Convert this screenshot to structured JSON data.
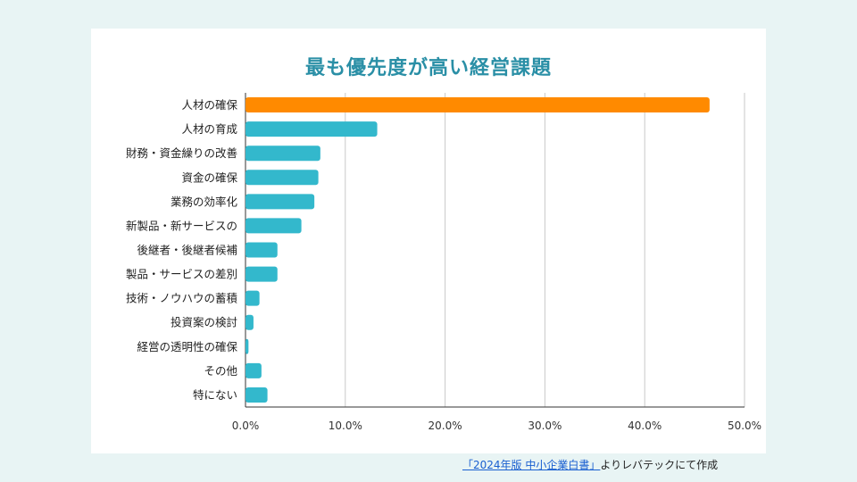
{
  "chart_data": {
    "type": "bar",
    "orientation": "horizontal",
    "title": "最も優先度が高い経営課題",
    "categories": [
      "人材の確保",
      "人材の育成",
      "財務・資金繰りの改善",
      "資金の確保",
      "業務の効率化",
      "新製品・新サービスの",
      "後継者・後継者候補",
      "製品・サービスの差別",
      "技術・ノウハウの蓄積",
      "投資案の検討",
      "経営の透明性の確保",
      "その他",
      "特にない"
    ],
    "values": [
      46.5,
      13.2,
      7.5,
      7.3,
      6.9,
      5.6,
      3.2,
      3.2,
      1.4,
      0.8,
      0.3,
      1.6,
      2.2
    ],
    "xlim": [
      0,
      50
    ],
    "xticks": [
      "0.0%",
      "10.0%",
      "20.0%",
      "30.0%",
      "40.0%",
      "50.0%"
    ],
    "grid": "vertical",
    "legend": "none",
    "colors": {
      "highlight": "#ff8a00",
      "default": "#33b8cc",
      "grid": "#c9c9c9",
      "title": "#2a8fa6"
    },
    "highlight_index": 0
  },
  "source": {
    "link_text": "「2024年版 中小企業白書」",
    "suffix": "よりレバテックにて作成"
  }
}
